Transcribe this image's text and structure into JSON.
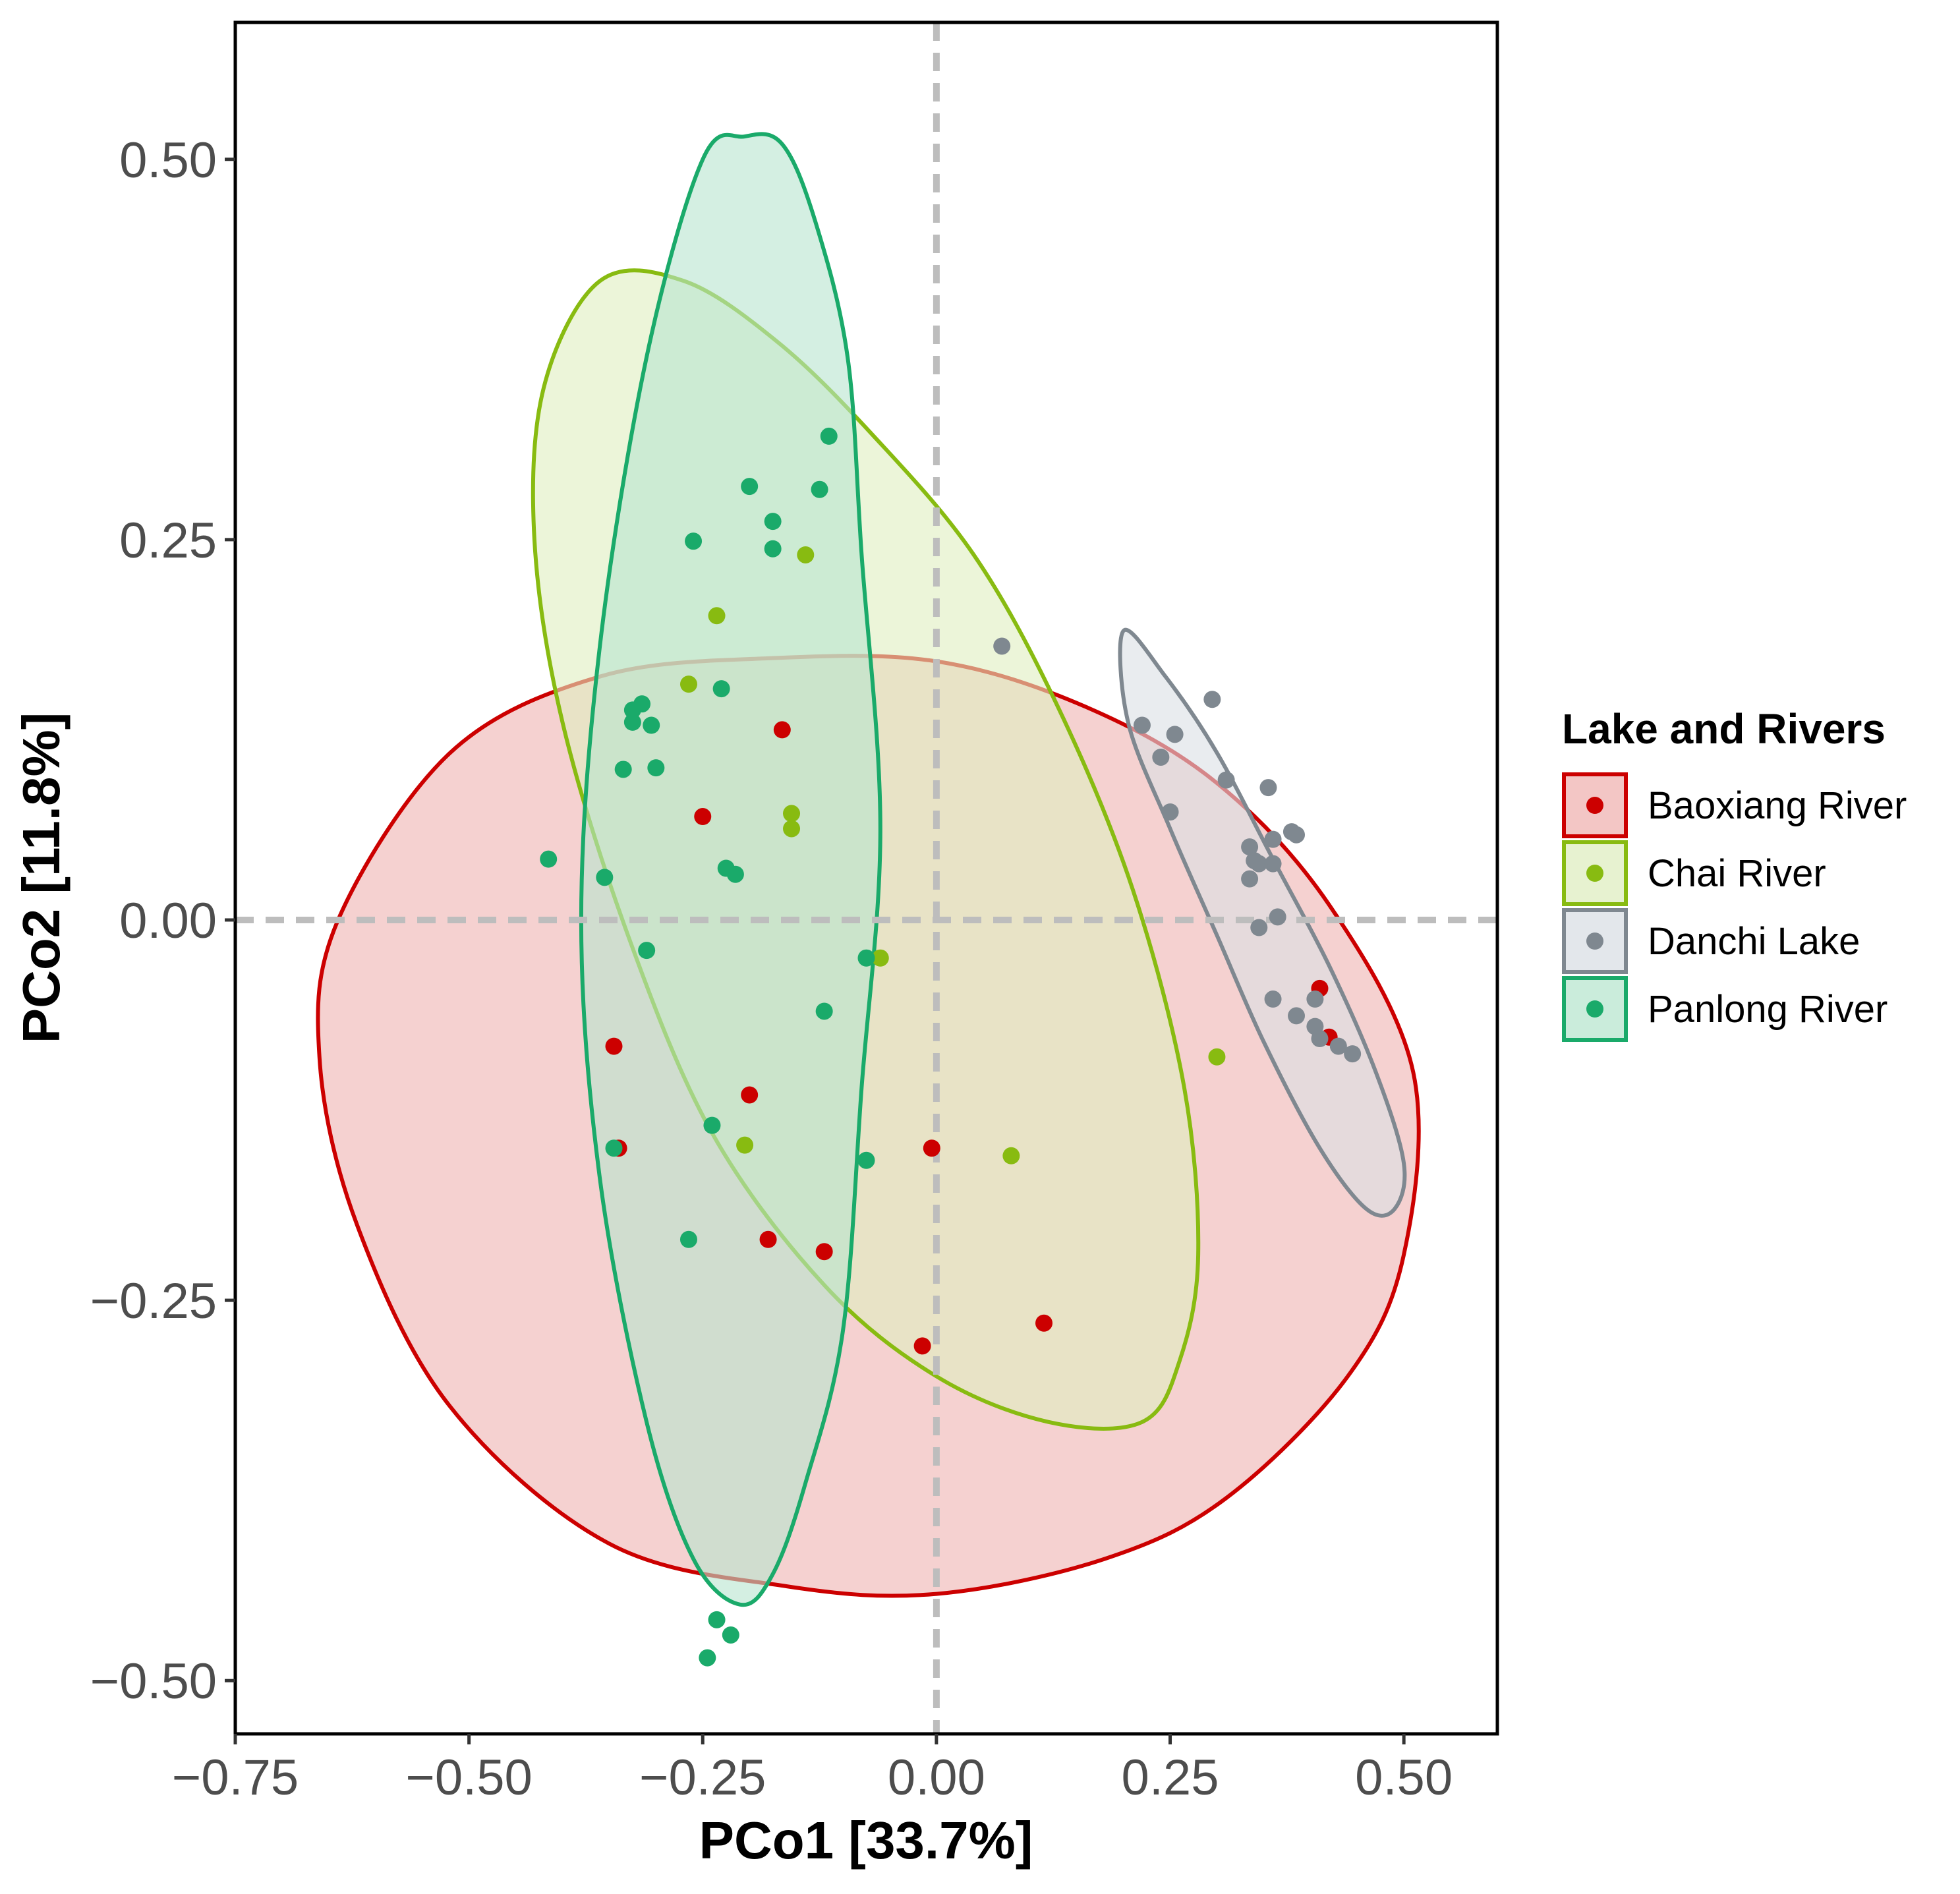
{
  "chart_data": {
    "type": "scatter",
    "xlabel": "PCo1 [33.7%]",
    "ylabel": "PCo2 [11.8%]",
    "xlim": [
      -0.75,
      0.6
    ],
    "ylim": [
      -0.535,
      0.59
    ],
    "xticks": [
      -0.75,
      -0.5,
      -0.25,
      0.0,
      0.25,
      0.5
    ],
    "yticks": [
      -0.5,
      -0.25,
      0.0,
      0.25,
      0.5
    ],
    "xtick_labels": [
      "−0.75",
      "−0.50",
      "−0.25",
      "0.00",
      "0.25",
      "0.50"
    ],
    "ytick_labels": [
      "−0.50",
      "−0.25",
      "0.00",
      "0.25",
      "0.50"
    ],
    "grid": false,
    "reference_lines": {
      "x": 0,
      "y": 0,
      "style": "dashed",
      "color": "#bdbdbd"
    },
    "legend": {
      "title": "Lake and Rivers",
      "position": "right"
    },
    "series": [
      {
        "name": "Baoxiang River",
        "color": "#cc0000",
        "fill": "#efb3b1",
        "ellipse": [
          [
            -0.64,
            0.0
          ],
          [
            -0.52,
            0.11
          ],
          [
            -0.36,
            0.16
          ],
          [
            -0.18,
            0.172
          ],
          [
            0.0,
            0.17
          ],
          [
            0.16,
            0.14
          ],
          [
            0.3,
            0.09
          ],
          [
            0.42,
            0.01
          ],
          [
            0.51,
            -0.1
          ],
          [
            0.5,
            -0.22
          ],
          [
            0.44,
            -0.3
          ],
          [
            0.31,
            -0.38
          ],
          [
            0.18,
            -0.42
          ],
          [
            0.0,
            -0.443
          ],
          [
            -0.16,
            -0.438
          ],
          [
            -0.35,
            -0.41
          ],
          [
            -0.52,
            -0.32
          ],
          [
            -0.62,
            -0.2
          ],
          [
            -0.66,
            -0.09
          ]
        ],
        "x": [
          -0.25,
          -0.165,
          -0.345,
          -0.2,
          -0.34,
          -0.005,
          -0.18,
          -0.12,
          -0.015,
          0.115,
          0.41,
          0.42
        ],
        "y": [
          0.068,
          0.125,
          -0.083,
          -0.115,
          -0.15,
          -0.15,
          -0.21,
          -0.218,
          -0.28,
          -0.265,
          -0.045,
          -0.077
        ]
      },
      {
        "name": "Chai River",
        "color": "#88bb11",
        "fill": "#dfeec0",
        "ellipse": [
          [
            -0.36,
            0.42
          ],
          [
            -0.27,
            0.42
          ],
          [
            -0.17,
            0.38
          ],
          [
            -0.07,
            0.32
          ],
          [
            0.04,
            0.24
          ],
          [
            0.13,
            0.14
          ],
          [
            0.21,
            0.02
          ],
          [
            0.265,
            -0.11
          ],
          [
            0.28,
            -0.22
          ],
          [
            0.26,
            -0.29
          ],
          [
            0.22,
            -0.33
          ],
          [
            0.12,
            -0.33
          ],
          [
            0.0,
            -0.3
          ],
          [
            -0.12,
            -0.24
          ],
          [
            -0.24,
            -0.14
          ],
          [
            -0.33,
            -0.01
          ],
          [
            -0.4,
            0.13
          ],
          [
            -0.43,
            0.25
          ],
          [
            -0.42,
            0.35
          ]
        ],
        "x": [
          -0.14,
          -0.235,
          -0.265,
          -0.155,
          -0.155,
          -0.06,
          0.08,
          0.3,
          -0.205
        ],
        "y": [
          0.24,
          0.2,
          0.155,
          0.07,
          0.06,
          -0.025,
          -0.155,
          -0.09,
          -0.148
        ]
      },
      {
        "name": "Danchi Lake",
        "color": "#7f8890",
        "fill": "#dadfe4",
        "ellipse": [
          [
            0.2,
            0.19
          ],
          [
            0.245,
            0.16
          ],
          [
            0.3,
            0.11
          ],
          [
            0.36,
            0.04
          ],
          [
            0.42,
            -0.03
          ],
          [
            0.47,
            -0.1
          ],
          [
            0.5,
            -0.16
          ],
          [
            0.49,
            -0.19
          ],
          [
            0.46,
            -0.19
          ],
          [
            0.41,
            -0.15
          ],
          [
            0.35,
            -0.08
          ],
          [
            0.3,
            -0.01
          ],
          [
            0.25,
            0.06
          ],
          [
            0.205,
            0.13
          ]
        ],
        "x": [
          0.07,
          0.295,
          0.22,
          0.255,
          0.24,
          0.31,
          0.355,
          0.25,
          0.385,
          0.38,
          0.335,
          0.34,
          0.345,
          0.335,
          0.365,
          0.345,
          0.36,
          0.36,
          0.405,
          0.36,
          0.385,
          0.405,
          0.41,
          0.43,
          0.445
        ],
        "y": [
          0.18,
          0.145,
          0.128,
          0.122,
          0.107,
          0.092,
          0.087,
          0.071,
          0.056,
          0.058,
          0.048,
          0.039,
          0.037,
          0.027,
          0.002,
          -0.005,
          0.053,
          0.037,
          -0.052,
          -0.052,
          -0.063,
          -0.07,
          -0.078,
          -0.083,
          -0.088
        ]
      },
      {
        "name": "Panlong River",
        "color": "#1aaa6a",
        "fill": "#b8e5cf",
        "ellipse": [
          [
            -0.205,
            0.515
          ],
          [
            -0.165,
            0.51
          ],
          [
            -0.13,
            0.46
          ],
          [
            -0.095,
            0.37
          ],
          [
            -0.08,
            0.24
          ],
          [
            -0.06,
            0.06
          ],
          [
            -0.08,
            -0.11
          ],
          [
            -0.1,
            -0.27
          ],
          [
            -0.14,
            -0.37
          ],
          [
            -0.175,
            -0.43
          ],
          [
            -0.21,
            -0.45
          ],
          [
            -0.26,
            -0.42
          ],
          [
            -0.31,
            -0.33
          ],
          [
            -0.36,
            -0.17
          ],
          [
            -0.38,
            0.0
          ],
          [
            -0.36,
            0.18
          ],
          [
            -0.31,
            0.37
          ],
          [
            -0.25,
            0.5
          ]
        ],
        "x": [
          -0.115,
          -0.2,
          -0.125,
          -0.175,
          -0.26,
          -0.175,
          -0.23,
          -0.315,
          -0.325,
          -0.325,
          -0.305,
          -0.3,
          -0.335,
          -0.415,
          -0.355,
          -0.225,
          -0.215,
          -0.31,
          -0.075,
          -0.12,
          -0.345,
          -0.24,
          -0.075,
          -0.265,
          -0.235,
          -0.22,
          -0.245
        ],
        "y": [
          0.318,
          0.285,
          0.283,
          0.262,
          0.249,
          0.244,
          0.152,
          0.142,
          0.138,
          0.13,
          0.128,
          0.1,
          0.099,
          0.04,
          0.028,
          0.034,
          0.03,
          -0.02,
          -0.025,
          -0.06,
          -0.15,
          -0.135,
          -0.158,
          -0.21,
          -0.46,
          -0.47,
          -0.485
        ]
      }
    ]
  }
}
